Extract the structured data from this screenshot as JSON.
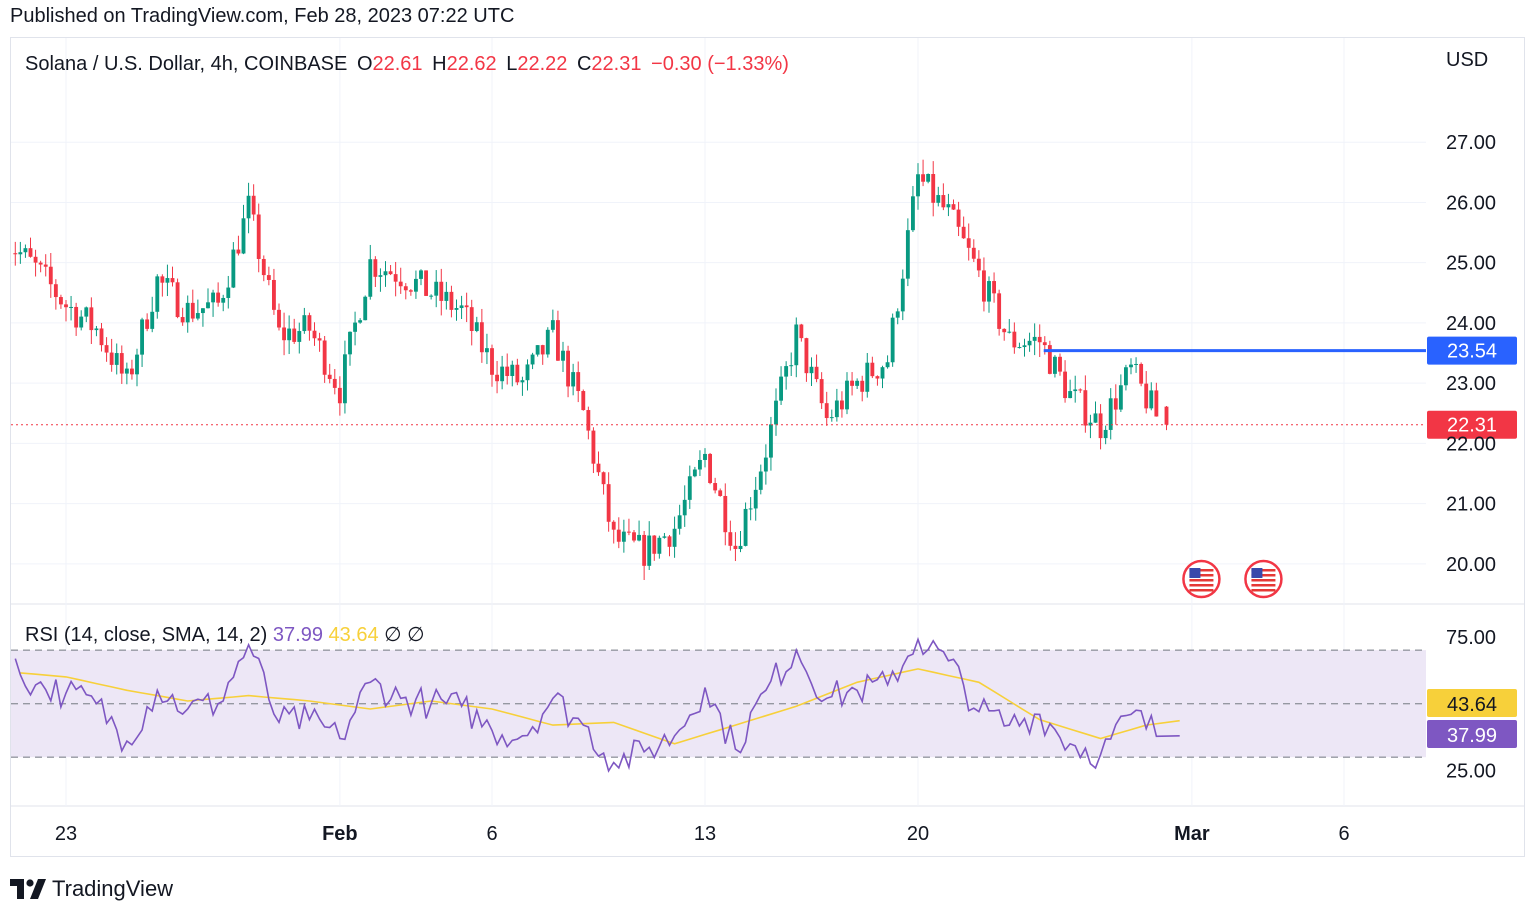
{
  "header": {
    "published": "Published on TradingView.com, Feb 28, 2023 07:22 UTC"
  },
  "legend": {
    "symbol": "Solana / U.S. Dollar, 4h, COINBASE",
    "o_label": "O",
    "o": "22.61",
    "h_label": "H",
    "h": "22.62",
    "l_label": "L",
    "l": "22.22",
    "c_label": "C",
    "c": "22.31",
    "change": "−0.30 (−1.33%)"
  },
  "rsi_legend": {
    "label": "RSI (14, close, SMA, 14, 2)",
    "rsi": "37.99",
    "sma": "43.64",
    "sym1": "∅",
    "sym2": "∅"
  },
  "footer": {
    "brand": "TradingView"
  },
  "colors": {
    "up": "#089981",
    "down": "#f23645",
    "line_blue": "#2962ff",
    "rsi": "#7e57c2",
    "rsi_sma": "#f7d03a",
    "band": "#ede7f6",
    "grid": "#f0f3fa"
  },
  "chart_data": [
    {
      "type": "candlestick",
      "currency": "USD",
      "y_ticks": [
        27.0,
        26.0,
        25.0,
        24.0,
        23.0,
        22.0,
        21.0,
        20.0
      ],
      "y_tick_labels": [
        "27.00",
        "26.00",
        "25.00",
        "24.00",
        "23.00",
        "22.00",
        "21.00",
        "20.00"
      ],
      "ylim": [
        19.4,
        27.9
      ],
      "x_tick_labels": [
        "23",
        "Feb",
        "6",
        "13",
        "20",
        "Mar",
        "6"
      ],
      "x_tick_dates": [
        "2023-01-23",
        "2023-02-01",
        "2023-02-06",
        "2023-02-13",
        "2023-02-20",
        "2023-03-01",
        "2023-03-06"
      ],
      "horizontal_line": {
        "value": 23.54,
        "label": "23.54",
        "from_date": "2023-02-24"
      },
      "last_price": {
        "value": 22.31,
        "label": "22.31"
      },
      "events": [
        "us-flag-icon",
        "us-flag-icon"
      ],
      "close_path_daily": [
        {
          "date": "2023-01-21",
          "close": 25.4
        },
        {
          "date": "2023-01-22",
          "close": 24.9
        },
        {
          "date": "2023-01-23",
          "close": 24.3
        },
        {
          "date": "2023-01-24",
          "close": 23.9
        },
        {
          "date": "2023-01-25",
          "close": 23.0
        },
        {
          "date": "2023-01-26",
          "close": 24.7
        },
        {
          "date": "2023-01-27",
          "close": 24.2
        },
        {
          "date": "2023-01-28",
          "close": 24.3
        },
        {
          "date": "2023-01-29",
          "close": 25.9
        },
        {
          "date": "2023-01-30",
          "close": 23.8
        },
        {
          "date": "2023-01-31",
          "close": 23.9
        },
        {
          "date": "2023-02-01",
          "close": 22.9
        },
        {
          "date": "2023-02-02",
          "close": 25.0
        },
        {
          "date": "2023-02-03",
          "close": 24.8
        },
        {
          "date": "2023-02-04",
          "close": 24.5
        },
        {
          "date": "2023-02-05",
          "close": 24.2
        },
        {
          "date": "2023-02-06",
          "close": 23.3
        },
        {
          "date": "2023-02-07",
          "close": 23.0
        },
        {
          "date": "2023-02-08",
          "close": 23.8
        },
        {
          "date": "2023-02-09",
          "close": 22.5
        },
        {
          "date": "2023-02-10",
          "close": 20.4
        },
        {
          "date": "2023-02-11",
          "close": 20.2
        },
        {
          "date": "2023-02-12",
          "close": 20.6
        },
        {
          "date": "2023-02-13",
          "close": 21.8
        },
        {
          "date": "2023-02-14",
          "close": 20.3
        },
        {
          "date": "2023-02-15",
          "close": 21.9
        },
        {
          "date": "2023-02-16",
          "close": 23.8
        },
        {
          "date": "2023-02-17",
          "close": 22.4
        },
        {
          "date": "2023-02-18",
          "close": 23.0
        },
        {
          "date": "2023-02-19",
          "close": 23.4
        },
        {
          "date": "2023-02-20",
          "close": 26.4
        },
        {
          "date": "2023-02-21",
          "close": 25.8
        },
        {
          "date": "2023-02-22",
          "close": 24.8
        },
        {
          "date": "2023-02-23",
          "close": 23.7
        },
        {
          "date": "2023-02-24",
          "close": 23.7
        },
        {
          "date": "2023-02-25",
          "close": 22.8
        },
        {
          "date": "2023-02-26",
          "close": 22.3
        },
        {
          "date": "2023-02-27",
          "close": 23.2
        },
        {
          "date": "2023-02-28",
          "close": 22.31
        }
      ]
    },
    {
      "type": "line",
      "title": "RSI (14, close, SMA, 14, 2)",
      "y_ticks": [
        75.0,
        25.0
      ],
      "y_tick_labels": [
        "75.00",
        "25.00"
      ],
      "band": [
        30,
        70
      ],
      "mid": 50,
      "ylim": [
        14,
        85
      ],
      "current": {
        "rsi": 37.99,
        "rsi_label": "37.99",
        "sma": 43.64,
        "sma_label": "43.64"
      },
      "series": [
        {
          "name": "RSI",
          "values_daily": [
            {
              "date": "2023-01-21",
              "value": 66
            },
            {
              "date": "2023-01-22",
              "value": 57
            },
            {
              "date": "2023-01-23",
              "value": 54
            },
            {
              "date": "2023-01-24",
              "value": 50
            },
            {
              "date": "2023-01-25",
              "value": 36
            },
            {
              "date": "2023-01-26",
              "value": 55
            },
            {
              "date": "2023-01-27",
              "value": 48
            },
            {
              "date": "2023-01-28",
              "value": 50
            },
            {
              "date": "2023-01-29",
              "value": 72
            },
            {
              "date": "2023-01-30",
              "value": 43
            },
            {
              "date": "2023-01-31",
              "value": 44
            },
            {
              "date": "2023-02-01",
              "value": 37
            },
            {
              "date": "2023-02-02",
              "value": 58
            },
            {
              "date": "2023-02-03",
              "value": 52
            },
            {
              "date": "2023-02-04",
              "value": 50
            },
            {
              "date": "2023-02-05",
              "value": 49
            },
            {
              "date": "2023-02-06",
              "value": 40
            },
            {
              "date": "2023-02-07",
              "value": 38
            },
            {
              "date": "2023-02-08",
              "value": 52
            },
            {
              "date": "2023-02-09",
              "value": 42
            },
            {
              "date": "2023-02-10",
              "value": 28
            },
            {
              "date": "2023-02-11",
              "value": 32
            },
            {
              "date": "2023-02-12",
              "value": 38
            },
            {
              "date": "2023-02-13",
              "value": 56
            },
            {
              "date": "2023-02-14",
              "value": 33
            },
            {
              "date": "2023-02-15",
              "value": 55
            },
            {
              "date": "2023-02-16",
              "value": 70
            },
            {
              "date": "2023-02-17",
              "value": 52
            },
            {
              "date": "2023-02-18",
              "value": 55
            },
            {
              "date": "2023-02-19",
              "value": 57
            },
            {
              "date": "2023-02-20",
              "value": 74
            },
            {
              "date": "2023-02-21",
              "value": 66
            },
            {
              "date": "2023-02-22",
              "value": 47
            },
            {
              "date": "2023-02-23",
              "value": 42
            },
            {
              "date": "2023-02-24",
              "value": 46
            },
            {
              "date": "2023-02-25",
              "value": 35
            },
            {
              "date": "2023-02-26",
              "value": 31
            },
            {
              "date": "2023-02-27",
              "value": 46
            },
            {
              "date": "2023-02-28",
              "value": 37.99
            }
          ]
        },
        {
          "name": "SMA",
          "values_daily": [
            {
              "date": "2023-01-21",
              "value": 62
            },
            {
              "date": "2023-01-23",
              "value": 60
            },
            {
              "date": "2023-01-25",
              "value": 55
            },
            {
              "date": "2023-01-27",
              "value": 51
            },
            {
              "date": "2023-01-29",
              "value": 53
            },
            {
              "date": "2023-01-31",
              "value": 51
            },
            {
              "date": "2023-02-02",
              "value": 48
            },
            {
              "date": "2023-02-04",
              "value": 51
            },
            {
              "date": "2023-02-06",
              "value": 48
            },
            {
              "date": "2023-02-08",
              "value": 42
            },
            {
              "date": "2023-02-10",
              "value": 43
            },
            {
              "date": "2023-02-12",
              "value": 35
            },
            {
              "date": "2023-02-14",
              "value": 42
            },
            {
              "date": "2023-02-16",
              "value": 49
            },
            {
              "date": "2023-02-18",
              "value": 58
            },
            {
              "date": "2023-02-20",
              "value": 63
            },
            {
              "date": "2023-02-22",
              "value": 58
            },
            {
              "date": "2023-02-24",
              "value": 44
            },
            {
              "date": "2023-02-26",
              "value": 37
            },
            {
              "date": "2023-02-28",
              "value": 43.64
            }
          ]
        }
      ]
    }
  ]
}
